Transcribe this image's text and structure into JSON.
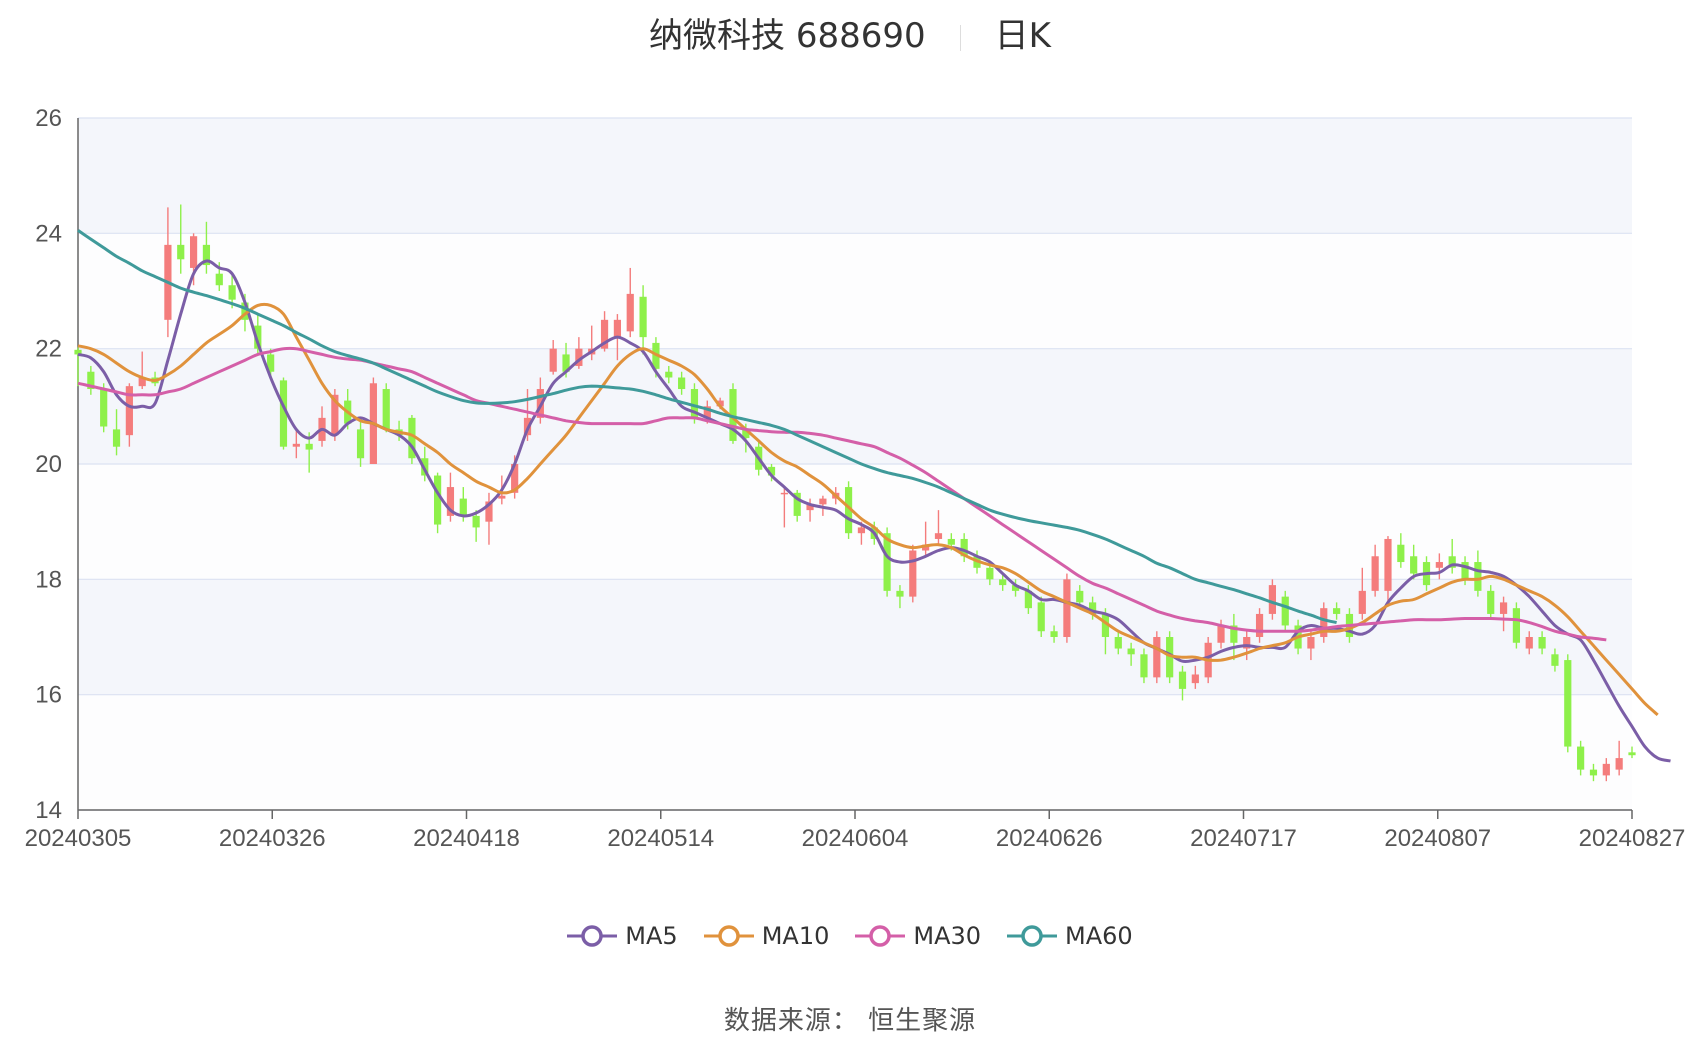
{
  "header": {
    "name": "纳微科技 688690",
    "period": "日K"
  },
  "source": "数据来源： 恒生聚源",
  "colors": {
    "up": "#f47c7c",
    "down": "#8ef04a",
    "band": "#f4f6fb",
    "grid": "#dce2f2"
  },
  "chart_data": {
    "type": "candlestick",
    "ylim": [
      14,
      26
    ],
    "yticks": [
      14,
      16,
      18,
      20,
      22,
      24,
      26
    ],
    "xticks": [
      "20240305",
      "20240326",
      "20240418",
      "20240514",
      "20240604",
      "20240626",
      "20240717",
      "20240807",
      "20240827"
    ],
    "grid": true,
    "legend_position": "bottom-center",
    "candles": [
      [
        21.98,
        21.9,
        22.02,
        21.35
      ],
      [
        21.6,
        21.3,
        21.7,
        21.2
      ],
      [
        21.3,
        20.65,
        21.4,
        20.55
      ],
      [
        20.6,
        20.3,
        20.95,
        20.15
      ],
      [
        20.5,
        21.35,
        21.4,
        20.3
      ],
      [
        21.35,
        21.5,
        21.95,
        21.3
      ],
      [
        21.5,
        21.4,
        21.6,
        21.35
      ],
      [
        22.5,
        23.8,
        24.45,
        22.2
      ],
      [
        23.8,
        23.55,
        24.5,
        23.3
      ],
      [
        23.4,
        23.95,
        24.0,
        23.1
      ],
      [
        23.8,
        23.45,
        24.2,
        23.3
      ],
      [
        23.3,
        23.1,
        23.5,
        23.0
      ],
      [
        23.1,
        22.85,
        23.3,
        22.7
      ],
      [
        22.8,
        22.5,
        22.95,
        22.3
      ],
      [
        22.4,
        22.0,
        22.6,
        21.9
      ],
      [
        21.9,
        21.6,
        22.0,
        21.5
      ],
      [
        21.45,
        20.3,
        21.5,
        20.25
      ],
      [
        20.3,
        20.35,
        20.6,
        20.1
      ],
      [
        20.35,
        20.25,
        20.55,
        19.85
      ],
      [
        20.4,
        20.8,
        21.0,
        20.3
      ],
      [
        20.5,
        21.2,
        21.3,
        20.4
      ],
      [
        21.1,
        20.7,
        21.3,
        20.6
      ],
      [
        20.6,
        20.1,
        20.75,
        19.95
      ],
      [
        20.0,
        21.4,
        21.5,
        20.0
      ],
      [
        21.3,
        20.6,
        21.4,
        20.55
      ],
      [
        20.6,
        20.5,
        20.75,
        20.4
      ],
      [
        20.8,
        20.1,
        20.85,
        20.0
      ],
      [
        20.1,
        19.8,
        20.3,
        19.7
      ],
      [
        19.8,
        18.95,
        19.85,
        18.8
      ],
      [
        19.1,
        19.6,
        19.85,
        19.0
      ],
      [
        19.4,
        19.1,
        19.6,
        19.0
      ],
      [
        19.1,
        18.9,
        19.2,
        18.65
      ],
      [
        19.0,
        19.35,
        19.5,
        18.6
      ],
      [
        19.4,
        19.45,
        19.8,
        19.3
      ],
      [
        19.5,
        20.0,
        20.15,
        19.4
      ],
      [
        20.5,
        20.8,
        21.3,
        20.4
      ],
      [
        20.8,
        21.3,
        21.5,
        20.7
      ],
      [
        21.6,
        22.0,
        22.15,
        21.55
      ],
      [
        21.9,
        21.6,
        22.1,
        21.5
      ],
      [
        21.7,
        22.0,
        22.2,
        21.65
      ],
      [
        21.9,
        22.0,
        22.4,
        21.8
      ],
      [
        22.0,
        22.5,
        22.65,
        21.95
      ],
      [
        22.2,
        22.5,
        22.6,
        21.8
      ],
      [
        22.3,
        22.95,
        23.4,
        22.2
      ],
      [
        22.9,
        22.2,
        23.1,
        21.9
      ],
      [
        22.1,
        21.65,
        22.2,
        21.5
      ],
      [
        21.6,
        21.5,
        21.7,
        21.4
      ],
      [
        21.5,
        21.3,
        21.6,
        21.2
      ],
      [
        21.3,
        20.8,
        21.4,
        20.7
      ],
      [
        20.8,
        21.0,
        21.1,
        20.7
      ],
      [
        21.0,
        21.1,
        21.15,
        20.95
      ],
      [
        21.3,
        20.4,
        21.4,
        20.35
      ],
      [
        20.6,
        20.45,
        20.7,
        20.2
      ],
      [
        20.3,
        19.9,
        20.4,
        19.8
      ],
      [
        19.95,
        19.8,
        20.0,
        19.7
      ],
      [
        19.5,
        19.5,
        19.6,
        18.9
      ],
      [
        19.5,
        19.1,
        19.55,
        19.0
      ],
      [
        19.2,
        19.3,
        19.4,
        19.0
      ],
      [
        19.3,
        19.4,
        19.45,
        19.1
      ],
      [
        19.4,
        19.5,
        19.6,
        19.3
      ],
      [
        19.6,
        18.8,
        19.7,
        18.7
      ],
      [
        18.8,
        18.9,
        19.0,
        18.6
      ],
      [
        18.9,
        18.7,
        19.0,
        18.6
      ],
      [
        18.8,
        17.8,
        18.9,
        17.7
      ],
      [
        17.8,
        17.7,
        17.9,
        17.5
      ],
      [
        17.7,
        18.5,
        18.6,
        17.6
      ],
      [
        18.5,
        18.6,
        19.0,
        18.4
      ],
      [
        18.7,
        18.8,
        19.2,
        18.6
      ],
      [
        18.7,
        18.6,
        18.8,
        18.5
      ],
      [
        18.7,
        18.4,
        18.8,
        18.3
      ],
      [
        18.4,
        18.2,
        18.5,
        18.1
      ],
      [
        18.2,
        18.0,
        18.3,
        17.9
      ],
      [
        18.0,
        17.9,
        18.1,
        17.8
      ],
      [
        17.9,
        17.8,
        18.0,
        17.7
      ],
      [
        17.8,
        17.5,
        17.9,
        17.4
      ],
      [
        17.6,
        17.1,
        17.7,
        17.0
      ],
      [
        17.1,
        17.0,
        17.2,
        16.9
      ],
      [
        17.0,
        18.0,
        18.1,
        16.9
      ],
      [
        17.8,
        17.6,
        17.9,
        17.5
      ],
      [
        17.6,
        17.4,
        17.7,
        17.3
      ],
      [
        17.4,
        17.0,
        17.5,
        16.7
      ],
      [
        17.0,
        16.8,
        17.1,
        16.7
      ],
      [
        16.8,
        16.7,
        16.9,
        16.5
      ],
      [
        16.7,
        16.3,
        16.8,
        16.2
      ],
      [
        16.3,
        17.0,
        17.1,
        16.2
      ],
      [
        17.0,
        16.3,
        17.1,
        16.2
      ],
      [
        16.4,
        16.1,
        16.5,
        15.9
      ],
      [
        16.2,
        16.35,
        16.5,
        16.1
      ],
      [
        16.3,
        16.9,
        17.0,
        16.2
      ],
      [
        16.9,
        17.2,
        17.3,
        16.8
      ],
      [
        17.2,
        16.9,
        17.4,
        16.6
      ],
      [
        16.8,
        17.0,
        17.1,
        16.6
      ],
      [
        17.0,
        17.4,
        17.5,
        16.9
      ],
      [
        17.4,
        17.9,
        18.0,
        17.3
      ],
      [
        17.7,
        17.2,
        17.8,
        17.1
      ],
      [
        17.2,
        16.8,
        17.3,
        16.7
      ],
      [
        16.8,
        17.0,
        17.1,
        16.6
      ],
      [
        17.0,
        17.5,
        17.6,
        16.9
      ],
      [
        17.5,
        17.4,
        17.6,
        17.3
      ],
      [
        17.4,
        17.0,
        17.5,
        16.9
      ],
      [
        17.4,
        17.8,
        18.2,
        17.3
      ],
      [
        17.8,
        18.4,
        18.6,
        17.7
      ],
      [
        17.8,
        18.7,
        18.75,
        17.6
      ],
      [
        18.6,
        18.3,
        18.8,
        18.2
      ],
      [
        18.4,
        18.1,
        18.6,
        18.0
      ],
      [
        18.3,
        17.9,
        18.4,
        17.8
      ],
      [
        18.2,
        18.3,
        18.45,
        18.0
      ],
      [
        18.4,
        18.2,
        18.7,
        18.1
      ],
      [
        18.3,
        18.0,
        18.4,
        17.9
      ],
      [
        18.3,
        17.8,
        18.5,
        17.7
      ],
      [
        17.8,
        17.4,
        17.9,
        17.3
      ],
      [
        17.4,
        17.6,
        17.7,
        17.1
      ],
      [
        17.5,
        16.9,
        17.6,
        16.8
      ],
      [
        16.8,
        17.0,
        17.1,
        16.7
      ],
      [
        17.0,
        16.8,
        17.1,
        16.7
      ],
      [
        16.7,
        16.5,
        16.8,
        16.4
      ],
      [
        16.6,
        15.1,
        16.7,
        15.0
      ],
      [
        15.1,
        14.7,
        15.2,
        14.6
      ],
      [
        14.7,
        14.6,
        14.8,
        14.5
      ],
      [
        14.6,
        14.8,
        14.9,
        14.5
      ],
      [
        14.7,
        14.9,
        15.2,
        14.6
      ],
      [
        15.0,
        14.95,
        15.1,
        14.9
      ]
    ],
    "series": [
      {
        "name": "MA5",
        "color": "#7b5ea7",
        "values": [
          21.9,
          21.84,
          21.6,
          21.2,
          21.0,
          21.0,
          21.05,
          21.8,
          22.6,
          23.3,
          23.52,
          23.4,
          23.3,
          22.8,
          22.1,
          21.5,
          21.0,
          20.6,
          20.45,
          20.6,
          20.5,
          20.7,
          20.8,
          20.7,
          20.6,
          20.5,
          20.3,
          19.9,
          19.5,
          19.2,
          19.1,
          19.15,
          19.3,
          19.55,
          20.0,
          20.6,
          21.0,
          21.4,
          21.6,
          21.8,
          21.95,
          22.1,
          22.2,
          22.1,
          21.95,
          21.6,
          21.3,
          21.0,
          20.9,
          20.8,
          20.7,
          20.6,
          20.4,
          20.1,
          19.8,
          19.6,
          19.4,
          19.3,
          19.25,
          19.2,
          19.05,
          18.95,
          18.8,
          18.4,
          18.3,
          18.32,
          18.4,
          18.5,
          18.55,
          18.5,
          18.4,
          18.3,
          18.1,
          17.9,
          17.8,
          17.65,
          17.65,
          17.6,
          17.55,
          17.45,
          17.4,
          17.3,
          17.1,
          16.9,
          16.8,
          16.7,
          16.58,
          16.6,
          16.65,
          16.75,
          16.82,
          16.85,
          16.82,
          16.82,
          16.82,
          17.1,
          17.2,
          17.15,
          17.15,
          17.1,
          17.05,
          17.2,
          17.6,
          17.85,
          18.05,
          18.1,
          18.12,
          18.25,
          18.22,
          18.15,
          18.12,
          18.05,
          17.9,
          17.7,
          17.45,
          17.2,
          17.05,
          16.95,
          16.6,
          16.2,
          15.8,
          15.45,
          15.1,
          14.9,
          14.85
        ]
      },
      {
        "name": "MA10",
        "color": "#e0923c",
        "values": [
          22.05,
          22.0,
          21.9,
          21.75,
          21.6,
          21.5,
          21.45,
          21.55,
          21.7,
          21.9,
          22.1,
          22.25,
          22.4,
          22.6,
          22.75,
          22.75,
          22.6,
          22.2,
          21.8,
          21.4,
          21.1,
          20.9,
          20.75,
          20.7,
          20.6,
          20.55,
          20.5,
          20.35,
          20.2,
          20.0,
          19.85,
          19.7,
          19.6,
          19.5,
          19.55,
          19.75,
          20.0,
          20.25,
          20.5,
          20.8,
          21.1,
          21.4,
          21.7,
          21.9,
          22.0,
          21.9,
          21.8,
          21.7,
          21.55,
          21.3,
          21.0,
          20.8,
          20.6,
          20.4,
          20.2,
          20.05,
          19.95,
          19.8,
          19.65,
          19.45,
          19.25,
          19.05,
          18.9,
          18.7,
          18.6,
          18.55,
          18.58,
          18.6,
          18.55,
          18.42,
          18.32,
          18.25,
          18.2,
          18.1,
          17.95,
          17.8,
          17.7,
          17.6,
          17.5,
          17.4,
          17.25,
          17.1,
          17.0,
          16.9,
          16.8,
          16.68,
          16.65,
          16.65,
          16.6,
          16.6,
          16.65,
          16.72,
          16.8,
          16.85,
          16.9,
          17.0,
          17.05,
          17.1,
          17.1,
          17.15,
          17.25,
          17.4,
          17.55,
          17.62,
          17.65,
          17.75,
          17.85,
          17.95,
          18.0,
          18.0,
          18.05,
          18.0,
          17.9,
          17.8,
          17.7,
          17.55,
          17.35,
          17.1,
          16.85,
          16.6,
          16.35,
          16.1,
          15.85,
          15.65
        ]
      },
      {
        "name": "MA30",
        "color": "#d45fa8",
        "values": [
          21.4,
          21.35,
          21.3,
          21.25,
          21.2,
          21.2,
          21.2,
          21.25,
          21.3,
          21.4,
          21.5,
          21.6,
          21.7,
          21.8,
          21.9,
          21.95,
          22.0,
          22.0,
          21.95,
          21.9,
          21.85,
          21.82,
          21.8,
          21.75,
          21.7,
          21.65,
          21.6,
          21.5,
          21.4,
          21.3,
          21.2,
          21.1,
          21.05,
          21.0,
          20.95,
          20.9,
          20.85,
          20.8,
          20.75,
          20.72,
          20.7,
          20.7,
          20.7,
          20.7,
          20.7,
          20.75,
          20.8,
          20.8,
          20.8,
          20.75,
          20.7,
          20.65,
          20.6,
          20.58,
          20.56,
          20.55,
          20.55,
          20.53,
          20.5,
          20.45,
          20.4,
          20.35,
          20.3,
          20.2,
          20.1,
          19.98,
          19.85,
          19.7,
          19.55,
          19.4,
          19.25,
          19.1,
          18.95,
          18.8,
          18.65,
          18.5,
          18.35,
          18.2,
          18.05,
          17.93,
          17.85,
          17.75,
          17.65,
          17.55,
          17.45,
          17.38,
          17.32,
          17.28,
          17.25,
          17.2,
          17.15,
          17.12,
          17.1,
          17.1,
          17.1,
          17.1,
          17.12,
          17.15,
          17.18,
          17.2,
          17.22,
          17.24,
          17.26,
          17.28,
          17.3,
          17.3,
          17.3,
          17.31,
          17.32,
          17.32,
          17.32,
          17.31,
          17.3,
          17.25,
          17.18,
          17.1,
          17.05,
          17.0,
          16.98,
          16.95
        ]
      },
      {
        "name": "MA60",
        "color": "#3f9a9a",
        "values": [
          24.05,
          23.9,
          23.75,
          23.6,
          23.48,
          23.35,
          23.25,
          23.15,
          23.05,
          22.98,
          22.92,
          22.85,
          22.78,
          22.7,
          22.6,
          22.5,
          22.4,
          22.28,
          22.17,
          22.05,
          21.95,
          21.88,
          21.82,
          21.75,
          21.65,
          21.55,
          21.45,
          21.35,
          21.25,
          21.17,
          21.1,
          21.06,
          21.05,
          21.06,
          21.08,
          21.12,
          21.17,
          21.22,
          21.28,
          21.33,
          21.35,
          21.34,
          21.32,
          21.3,
          21.26,
          21.2,
          21.13,
          21.07,
          21.01,
          20.95,
          20.88,
          20.82,
          20.77,
          20.72,
          20.67,
          20.6,
          20.5,
          20.4,
          20.3,
          20.2,
          20.1,
          20.0,
          19.92,
          19.85,
          19.8,
          19.75,
          19.68,
          19.6,
          19.5,
          19.4,
          19.3,
          19.2,
          19.13,
          19.07,
          19.02,
          18.98,
          18.94,
          18.9,
          18.85,
          18.78,
          18.7,
          18.6,
          18.5,
          18.4,
          18.28,
          18.2,
          18.1,
          18.0,
          17.94,
          17.88,
          17.82,
          17.75,
          17.68,
          17.6,
          17.53,
          17.45,
          17.38,
          17.3,
          17.25
        ]
      }
    ]
  }
}
